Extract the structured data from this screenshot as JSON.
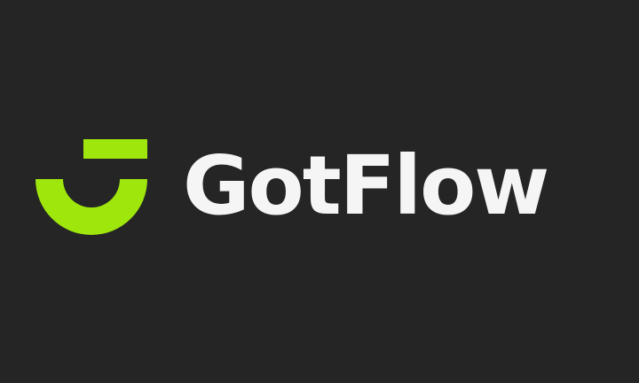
{
  "brand": {
    "name": "GotFlow",
    "icon": "gotflow-g-logo-icon",
    "accent_color": "#9ee60c",
    "text_color": "#f5f5f5",
    "background_color": "#252525"
  }
}
